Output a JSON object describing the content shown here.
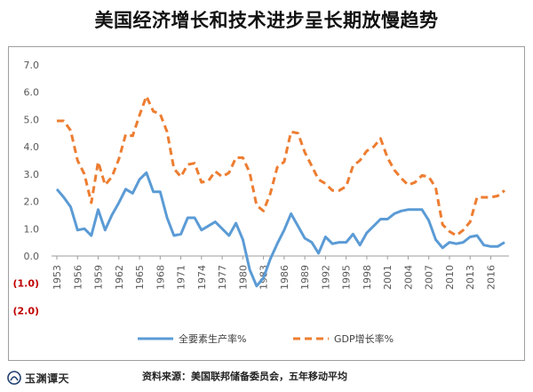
{
  "title": "美国经济增长和技术进步呈长期放慢趋势",
  "source": "资料来源：美国联邦储备委员会，五年移动平均",
  "logo_text": "玉渊谭天",
  "colors": {
    "tfp": "#5b9bd5",
    "gdp": "#ed7d31",
    "negative_tick": "#c00000",
    "tick": "#595959"
  },
  "chart_data": {
    "type": "line",
    "ylim": [
      -2,
      7
    ],
    "yticks": [
      {
        "value": 7,
        "label": "7.0"
      },
      {
        "value": 6,
        "label": "6.0"
      },
      {
        "value": 5,
        "label": "5.0"
      },
      {
        "value": 4,
        "label": "4.0"
      },
      {
        "value": 3,
        "label": "3.0"
      },
      {
        "value": 2,
        "label": "2.0"
      },
      {
        "value": 1,
        "label": "1.0"
      },
      {
        "value": 0,
        "label": "0.0"
      },
      {
        "value": -1,
        "label": "(1.0)"
      },
      {
        "value": -2,
        "label": "(2.0)"
      }
    ],
    "x": [
      1953,
      1954,
      1955,
      1956,
      1957,
      1958,
      1959,
      1960,
      1961,
      1962,
      1963,
      1964,
      1965,
      1966,
      1967,
      1968,
      1969,
      1970,
      1971,
      1972,
      1973,
      1974,
      1975,
      1976,
      1977,
      1978,
      1979,
      1980,
      1981,
      1982,
      1983,
      1984,
      1985,
      1986,
      1987,
      1988,
      1989,
      1990,
      1991,
      1992,
      1993,
      1994,
      1995,
      1996,
      1997,
      1998,
      1999,
      2000,
      2001,
      2002,
      2003,
      2004,
      2005,
      2006,
      2007,
      2008,
      2009,
      2010,
      2011,
      2012,
      2013,
      2014,
      2015,
      2016,
      2017,
      2018
    ],
    "xtick_labels": [
      "1953",
      "1956",
      "1959",
      "1962",
      "1965",
      "1968",
      "1971",
      "1974",
      "1977",
      "1980",
      "1983",
      "1986",
      "1989",
      "1992",
      "1995",
      "1998",
      "2001",
      "2004",
      "2007",
      "2010",
      "2013",
      "2016"
    ],
    "series": [
      {
        "name": "全要素生产率%",
        "style": "solid",
        "values": [
          2.45,
          2.15,
          1.8,
          0.95,
          1.0,
          0.75,
          1.7,
          0.95,
          1.5,
          1.95,
          2.45,
          2.3,
          2.8,
          3.05,
          2.35,
          2.35,
          1.4,
          0.75,
          0.8,
          1.4,
          1.4,
          0.95,
          1.1,
          1.25,
          1.0,
          0.75,
          1.2,
          0.6,
          -0.5,
          -1.1,
          -0.8,
          -0.1,
          0.45,
          0.95,
          1.55,
          1.1,
          0.65,
          0.5,
          0.1,
          0.7,
          0.45,
          0.5,
          0.5,
          0.8,
          0.4,
          0.85,
          1.1,
          1.35,
          1.35,
          1.55,
          1.65,
          1.7,
          1.7,
          1.7,
          1.3,
          0.6,
          0.3,
          0.5,
          0.45,
          0.5,
          0.7,
          0.75,
          0.4,
          0.35,
          0.35,
          0.5
        ]
      },
      {
        "name": "GDP增长率%",
        "style": "dashed",
        "values": [
          4.95,
          4.95,
          4.6,
          3.5,
          3.0,
          1.95,
          3.45,
          2.6,
          2.9,
          3.55,
          4.45,
          4.4,
          5.15,
          5.85,
          5.3,
          5.2,
          4.55,
          3.2,
          2.9,
          3.35,
          3.4,
          2.7,
          2.75,
          3.1,
          2.9,
          3.05,
          3.6,
          3.6,
          3.05,
          1.85,
          1.65,
          2.3,
          3.25,
          3.45,
          4.55,
          4.5,
          3.8,
          3.3,
          2.8,
          2.65,
          2.4,
          2.4,
          2.55,
          3.3,
          3.5,
          3.85,
          4.0,
          4.3,
          3.6,
          3.15,
          2.85,
          2.6,
          2.7,
          2.95,
          2.9,
          2.5,
          1.15,
          0.9,
          0.75,
          0.95,
          1.25,
          2.15,
          2.15,
          2.15,
          2.2,
          2.4
        ]
      }
    ],
    "legend_position": "bottom",
    "grid": false
  }
}
